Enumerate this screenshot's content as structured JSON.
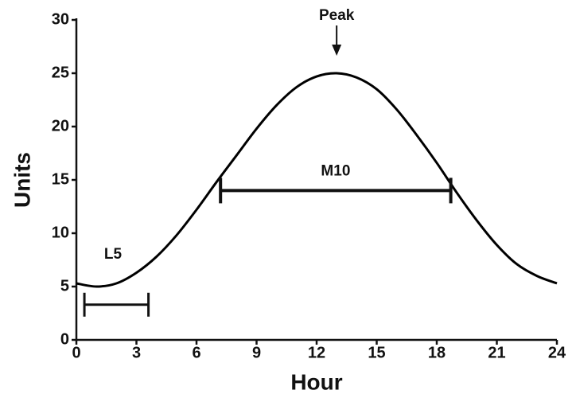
{
  "chart_data": {
    "type": "line",
    "x_label": "Hour",
    "y_label": "Units",
    "x": [
      0,
      1,
      2,
      3,
      4,
      5,
      6,
      7,
      8,
      9,
      10,
      11,
      12,
      13,
      14,
      15,
      16,
      17,
      18,
      19,
      20,
      21,
      22,
      23,
      24
    ],
    "series": [
      {
        "color": "#000000",
        "values": [
          5.3,
          5.0,
          5.3,
          6.3,
          7.8,
          9.8,
          12.2,
          14.8,
          17.3,
          19.8,
          22.0,
          23.7,
          24.7,
          25.0,
          24.6,
          23.5,
          21.6,
          19.2,
          16.6,
          13.8,
          11.2,
          8.9,
          7.1,
          6.0,
          5.3
        ]
      }
    ],
    "xlim": [
      0,
      24
    ],
    "xticks": [
      0,
      3,
      6,
      9,
      12,
      15,
      18,
      21,
      24
    ],
    "ylim": [
      0,
      30
    ],
    "yticks": [
      0,
      5,
      10,
      15,
      20,
      25,
      30
    ],
    "annotations": [
      {
        "label": "Peak",
        "x": 13
      },
      {
        "label": "M10",
        "x": [
          7.2,
          18.7
        ],
        "y": 14
      },
      {
        "label": "L5",
        "x": [
          0.4,
          3.6
        ],
        "y": 3.3
      }
    ]
  }
}
